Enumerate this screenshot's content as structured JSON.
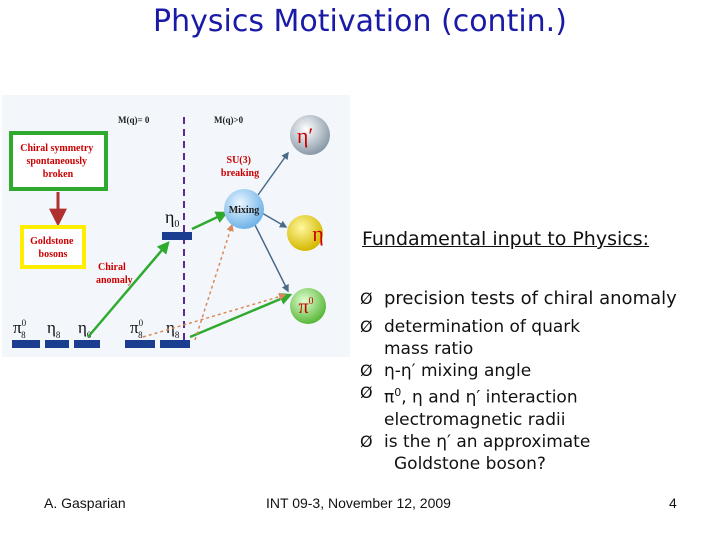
{
  "slide": {
    "title": "Physics Motivation (contin.)",
    "heading": "Fundamental input to Physics:"
  },
  "diagram": {
    "mq_zero": "M(q)= 0",
    "mq_positive": "M(q)>0",
    "chiral_box": [
      "Chiral symmetry",
      "spontaneously",
      "broken"
    ],
    "goldstone_box": [
      "Goldstone",
      "bosons"
    ],
    "chiral_anomaly": [
      "Chiral",
      "anomaly"
    ],
    "su3": [
      "SU(3)",
      "breaking"
    ],
    "mixing": "Mixing",
    "eta0": "η",
    "eta0_sub": "0",
    "eta_prime": "η′",
    "eta": "η",
    "pi0": "π",
    "pi0_sup": "0",
    "bottom": [
      {
        "base": "π",
        "sup": "0",
        "sub": "8"
      },
      {
        "base": "η",
        "sub": "8"
      },
      {
        "base": "η",
        "sub": "0"
      },
      {
        "base": "π",
        "sup": "0",
        "sub": "8"
      },
      {
        "base": "η",
        "sub": "8"
      }
    ]
  },
  "bullets": {
    "marker": "Ø",
    "b1": "precision tests of chiral anomaly",
    "b2": [
      "determination of quark",
      "mass ratio"
    ],
    "b3": "η-η′ mixing angle",
    "b4a": "π",
    "b4sup": "0",
    "b4b": ", η and η′ interaction",
    "b4c": "electromagnetic radii",
    "b5": [
      "is the η′ an approximate",
      "Goldstone boson?"
    ]
  },
  "footer": {
    "author": "A. Gasparian",
    "conference": "INT 09-3, November 12, 2009",
    "page": "4"
  },
  "colors": {
    "title": "#1a1aa8",
    "green": "#2faa2f",
    "yellow": "#ffee00",
    "red": "#cc0000",
    "bar": "#1a3d8f",
    "purple": "#5c2a8c"
  }
}
